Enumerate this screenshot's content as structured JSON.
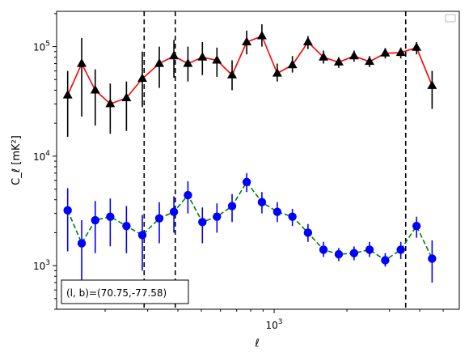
{
  "chart_data": {
    "type": "line",
    "xscale": "log",
    "yscale": "log",
    "xlim": [
      126,
      5830
    ],
    "ylim": [
      400,
      210000
    ],
    "xlabel": "ℓ",
    "ylabel": "C_ℓ  [mK²]",
    "x_ticks": [
      {
        "value": 1000,
        "label": "10",
        "exp": "3"
      }
    ],
    "y_ticks": [
      {
        "value": 1000,
        "label": "10",
        "exp": "3"
      },
      {
        "value": 10000,
        "label": "10",
        "exp": "4"
      },
      {
        "value": 100000,
        "label": "10",
        "exp": "5"
      }
    ],
    "grid": false,
    "legend": "top-right (empty)",
    "vlines": [
      290,
      390,
      3500
    ],
    "annotation": "(l, b)=(70.75,-77.58)",
    "series": [
      {
        "color": "#ff0000",
        "linestyle": "solid",
        "marker": "triangle",
        "marker_color": "#000000",
        "errorbar_color": "#000000",
        "points": [
          {
            "x": 140,
            "y": 36000,
            "lo": 15000,
            "hi": 60000
          },
          {
            "x": 160,
            "y": 70000,
            "lo": 23000,
            "hi": 120000
          },
          {
            "x": 182,
            "y": 40000,
            "lo": 19000,
            "hi": 62000
          },
          {
            "x": 210,
            "y": 30000,
            "lo": 16000,
            "hi": 46000
          },
          {
            "x": 245,
            "y": 34000,
            "lo": 17000,
            "hi": 48000
          },
          {
            "x": 285,
            "y": 51000,
            "lo": 28000,
            "hi": 90000
          },
          {
            "x": 335,
            "y": 70000,
            "lo": 42000,
            "hi": 100000
          },
          {
            "x": 385,
            "y": 82000,
            "lo": 52000,
            "hi": 115000
          },
          {
            "x": 440,
            "y": 70000,
            "lo": 48000,
            "hi": 100000
          },
          {
            "x": 505,
            "y": 80000,
            "lo": 55000,
            "hi": 110000
          },
          {
            "x": 580,
            "y": 75000,
            "lo": 53000,
            "hi": 98000
          },
          {
            "x": 670,
            "y": 55000,
            "lo": 40000,
            "hi": 75000
          },
          {
            "x": 770,
            "y": 110000,
            "lo": 85000,
            "hi": 140000
          },
          {
            "x": 890,
            "y": 125000,
            "lo": 100000,
            "hi": 160000
          },
          {
            "x": 1030,
            "y": 57000,
            "lo": 48000,
            "hi": 70000
          },
          {
            "x": 1190,
            "y": 68000,
            "lo": 58000,
            "hi": 82000
          },
          {
            "x": 1380,
            "y": 110000,
            "lo": 95000,
            "hi": 125000
          },
          {
            "x": 1600,
            "y": 80000,
            "lo": 70000,
            "hi": 92000
          },
          {
            "x": 1850,
            "y": 72000,
            "lo": 64000,
            "hi": 80000
          },
          {
            "x": 2140,
            "y": 82000,
            "lo": 73000,
            "hi": 92000
          },
          {
            "x": 2480,
            "y": 73000,
            "lo": 65000,
            "hi": 82000
          },
          {
            "x": 2880,
            "y": 87000,
            "lo": 78000,
            "hi": 97000
          },
          {
            "x": 3340,
            "y": 88000,
            "lo": 78000,
            "hi": 98000
          },
          {
            "x": 3880,
            "y": 98000,
            "lo": 85000,
            "hi": 110000
          },
          {
            "x": 4500,
            "y": 44000,
            "lo": 27000,
            "hi": 60000
          }
        ]
      },
      {
        "color": "#008000",
        "linestyle": "dashed",
        "marker": "circle",
        "marker_color": "#0000ff",
        "errorbar_color": "#0000ff",
        "points": [
          {
            "x": 140,
            "y": 3200,
            "lo": 1350,
            "hi": 5100
          },
          {
            "x": 160,
            "y": 1600,
            "lo": 700,
            "hi": 2600
          },
          {
            "x": 182,
            "y": 2600,
            "lo": 1300,
            "hi": 3900
          },
          {
            "x": 210,
            "y": 2800,
            "lo": 1500,
            "hi": 4100
          },
          {
            "x": 245,
            "y": 2300,
            "lo": 1300,
            "hi": 3500
          },
          {
            "x": 285,
            "y": 1900,
            "lo": 900,
            "hi": 2900
          },
          {
            "x": 335,
            "y": 2700,
            "lo": 1600,
            "hi": 3800
          },
          {
            "x": 385,
            "y": 3100,
            "lo": 2000,
            "hi": 4300
          },
          {
            "x": 440,
            "y": 4400,
            "lo": 3000,
            "hi": 5900
          },
          {
            "x": 505,
            "y": 2500,
            "lo": 1600,
            "hi": 3400
          },
          {
            "x": 580,
            "y": 2800,
            "lo": 2000,
            "hi": 3700
          },
          {
            "x": 670,
            "y": 3500,
            "lo": 2500,
            "hi": 4500
          },
          {
            "x": 770,
            "y": 5800,
            "lo": 4700,
            "hi": 7000
          },
          {
            "x": 890,
            "y": 3800,
            "lo": 3000,
            "hi": 4700
          },
          {
            "x": 1030,
            "y": 3100,
            "lo": 2500,
            "hi": 3800
          },
          {
            "x": 1190,
            "y": 2800,
            "lo": 2300,
            "hi": 3300
          },
          {
            "x": 1380,
            "y": 2000,
            "lo": 1650,
            "hi": 2400
          },
          {
            "x": 1600,
            "y": 1400,
            "lo": 1200,
            "hi": 1650
          },
          {
            "x": 1850,
            "y": 1270,
            "lo": 1100,
            "hi": 1450
          },
          {
            "x": 2140,
            "y": 1300,
            "lo": 1120,
            "hi": 1500
          },
          {
            "x": 2480,
            "y": 1400,
            "lo": 1200,
            "hi": 1650
          },
          {
            "x": 2880,
            "y": 1120,
            "lo": 980,
            "hi": 1300
          },
          {
            "x": 3340,
            "y": 1400,
            "lo": 1150,
            "hi": 1650
          },
          {
            "x": 3880,
            "y": 2300,
            "lo": 1800,
            "hi": 2800
          },
          {
            "x": 4500,
            "y": 1160,
            "lo": 700,
            "hi": 1700
          }
        ]
      }
    ]
  }
}
